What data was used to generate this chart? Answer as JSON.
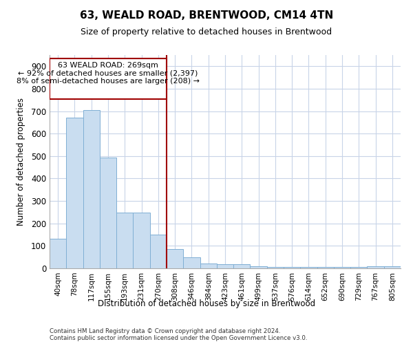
{
  "title": "63, WEALD ROAD, BRENTWOOD, CM14 4TN",
  "subtitle": "Size of property relative to detached houses in Brentwood",
  "xlabel": "Distribution of detached houses by size in Brentwood",
  "ylabel": "Number of detached properties",
  "bar_labels": [
    "40sqm",
    "78sqm",
    "117sqm",
    "155sqm",
    "193sqm",
    "231sqm",
    "270sqm",
    "308sqm",
    "346sqm",
    "384sqm",
    "423sqm",
    "461sqm",
    "499sqm",
    "537sqm",
    "576sqm",
    "614sqm",
    "652sqm",
    "690sqm",
    "729sqm",
    "767sqm",
    "805sqm"
  ],
  "bar_values": [
    132,
    670,
    705,
    493,
    249,
    248,
    150,
    85,
    48,
    22,
    17,
    17,
    10,
    5,
    5,
    5,
    5,
    5,
    5,
    8,
    8
  ],
  "bar_color": "#c9ddf0",
  "bar_edge_color": "#7fafd4",
  "highlight_line_color": "#a00000",
  "annotation_text_line1": "63 WEALD ROAD: 269sqm",
  "annotation_text_line2": "← 92% of detached houses are smaller (2,397)",
  "annotation_text_line3": "8% of semi-detached houses are larger (208) →",
  "annotation_box_color": "#a00000",
  "ylim": [
    0,
    950
  ],
  "yticks": [
    0,
    100,
    200,
    300,
    400,
    500,
    600,
    700,
    800,
    900
  ],
  "bg_color": "#ffffff",
  "grid_color": "#c8d4e8",
  "footer_line1": "Contains HM Land Registry data © Crown copyright and database right 2024.",
  "footer_line2": "Contains public sector information licensed under the Open Government Licence v3.0."
}
